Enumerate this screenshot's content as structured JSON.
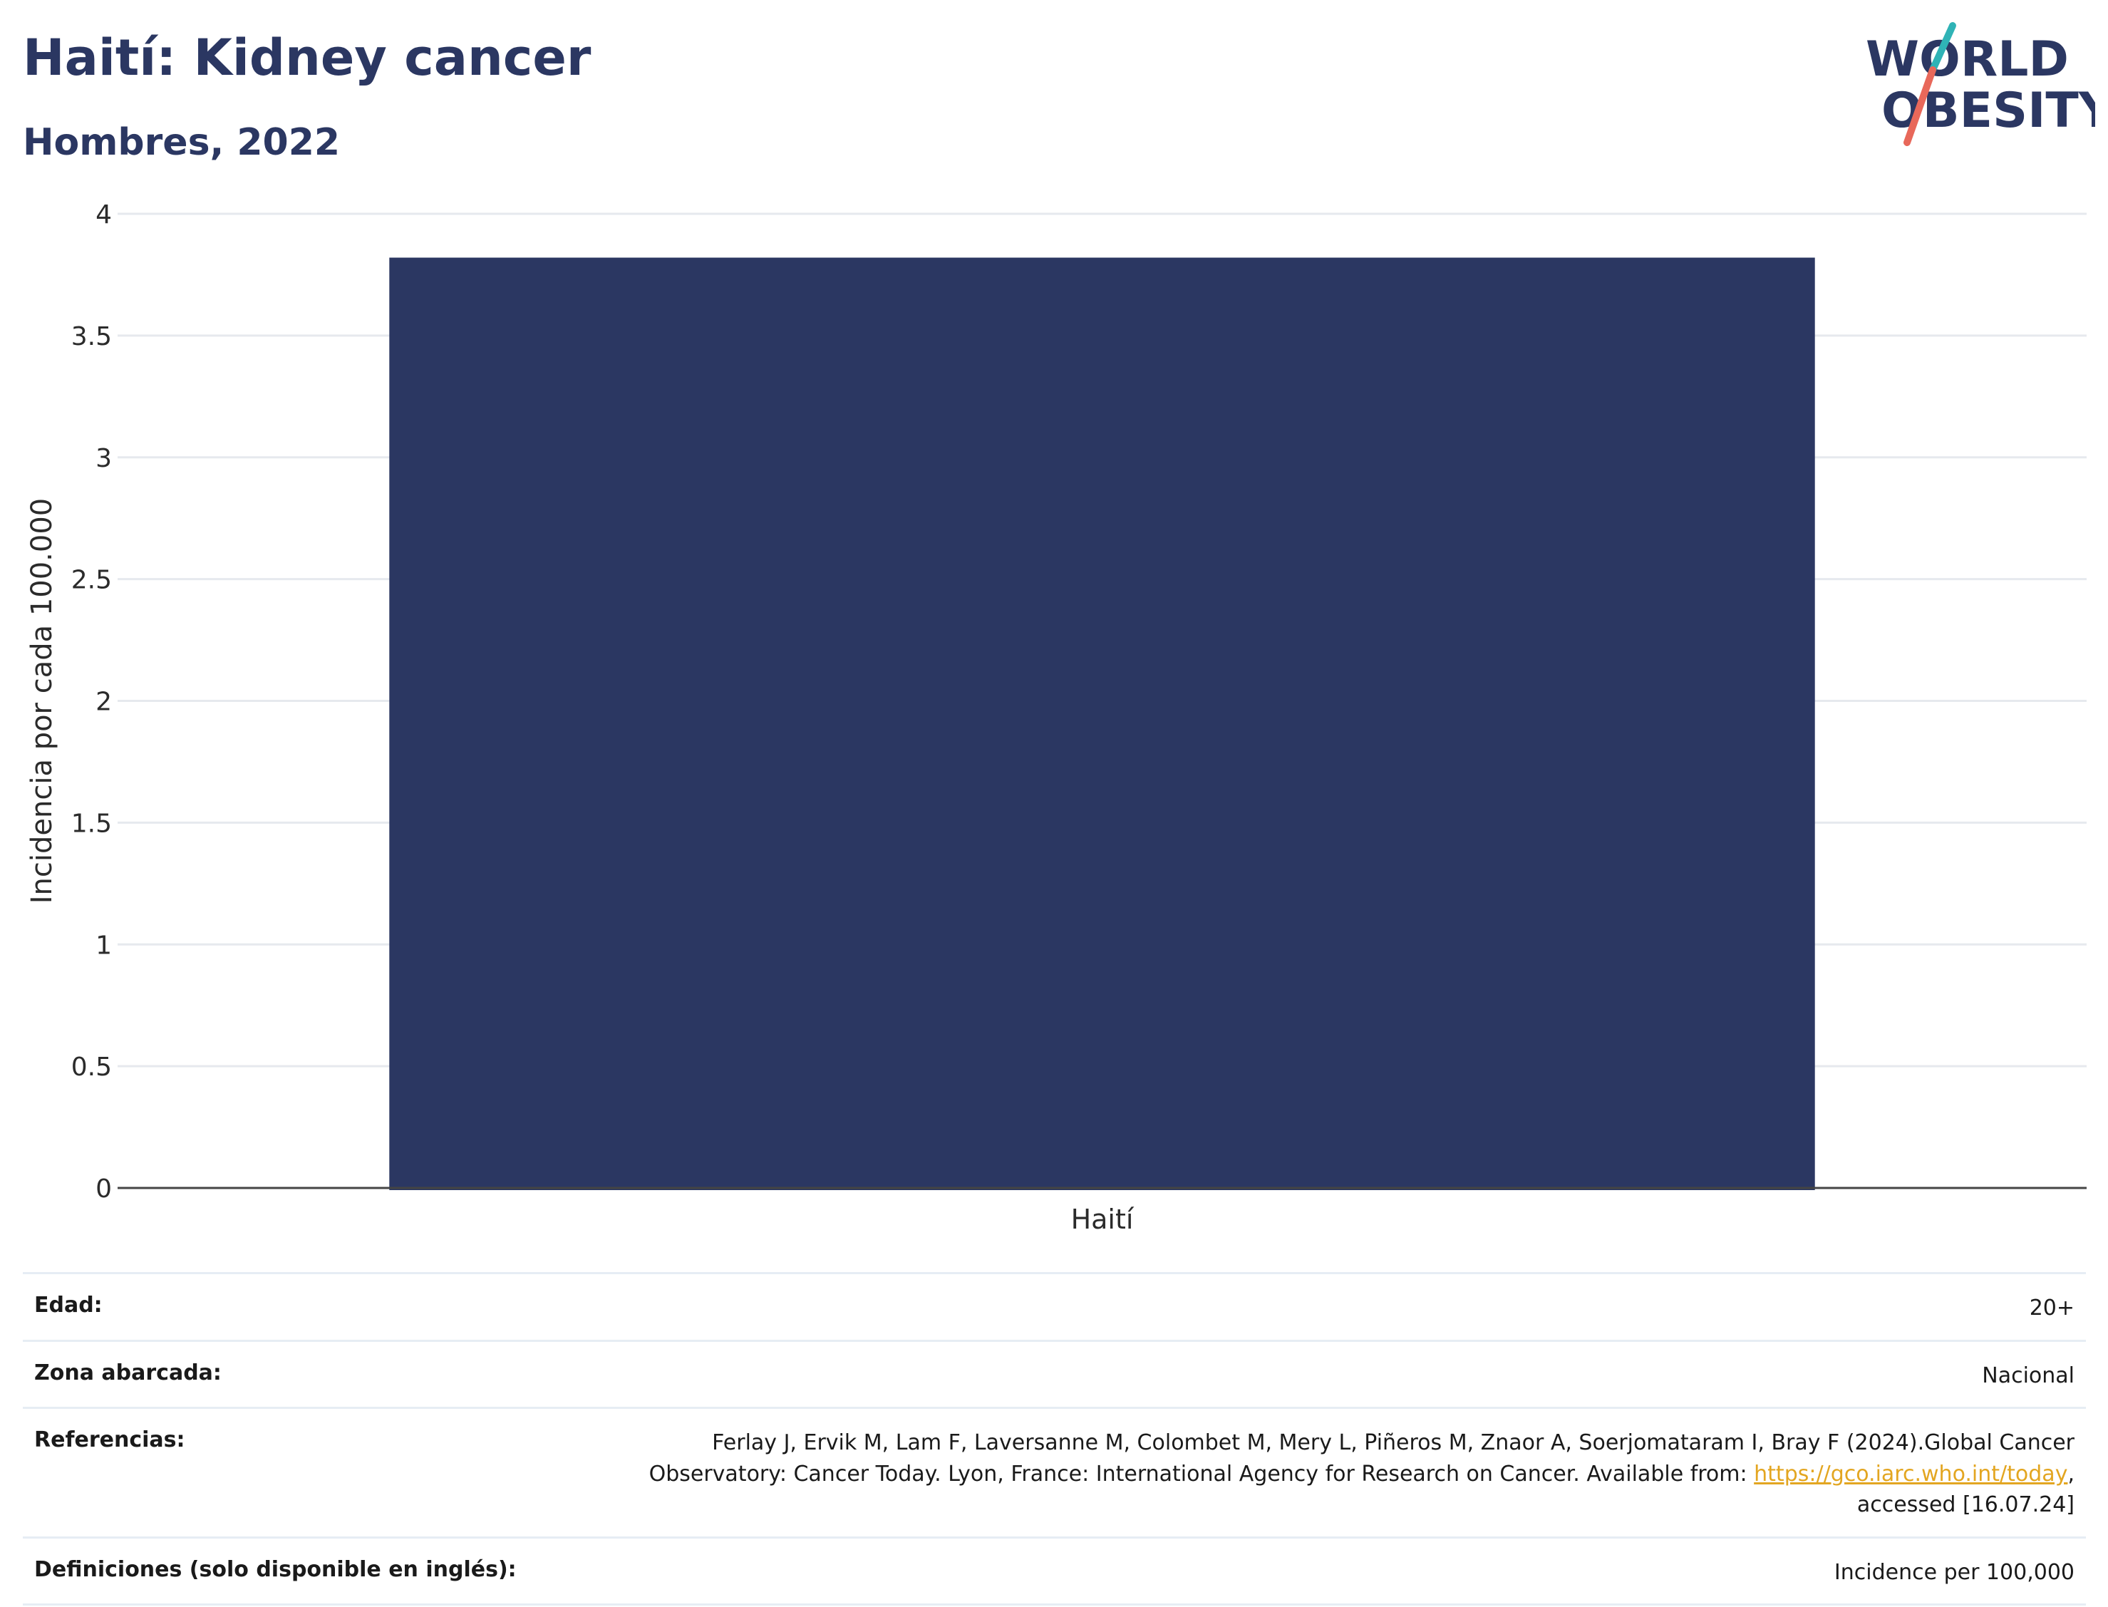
{
  "header": {
    "title": "Haití: Kidney cancer",
    "subtitle": "Hombres, 2022",
    "logo_text_line1": "WORLD",
    "logo_text_line2": "OBESITY"
  },
  "colors": {
    "bar": "#2b3762",
    "title": "#2b3762",
    "gridline": "#e6e9ee",
    "link": "#e3a621",
    "logo_slash_teal": "#2fb3b6",
    "logo_slash_coral": "#e8685a"
  },
  "chart_data": {
    "type": "bar",
    "categories": [
      "Haití"
    ],
    "values": [
      3.82
    ],
    "ylabel": "Incidencia por cada 100.000",
    "xlabel": "",
    "ylim": [
      0,
      4
    ],
    "yticks": [
      0,
      0.5,
      1,
      1.5,
      2,
      2.5,
      3,
      3.5,
      4
    ],
    "ytick_labels": [
      "0",
      "0.5",
      "1",
      "1.5",
      "2",
      "2.5",
      "3",
      "3.5",
      "4"
    ],
    "grid": true,
    "legend": "none"
  },
  "meta": {
    "age_label": "Edad:",
    "age_value": "20+",
    "coverage_label": "Zona abarcada:",
    "coverage_value": "Nacional",
    "references_label": "Referencias:",
    "references_line1": "Ferlay J, Ervik M, Lam F, Laversanne M, Colombet M, Mery L, Piñeros M, Znaor A, Soerjomataram I, Bray F (2024).Global Cancer",
    "references_line2_pre": "Observatory: Cancer Today. Lyon, France: International Agency for Research on Cancer. Available from: ",
    "references_link": "https://gco.iarc.who.int/today",
    "references_line2_post": ",",
    "references_line3": "accessed [16.07.24]",
    "definitions_label": "Definiciones (solo disponible en inglés):",
    "definitions_value": "Incidence per 100,000"
  }
}
